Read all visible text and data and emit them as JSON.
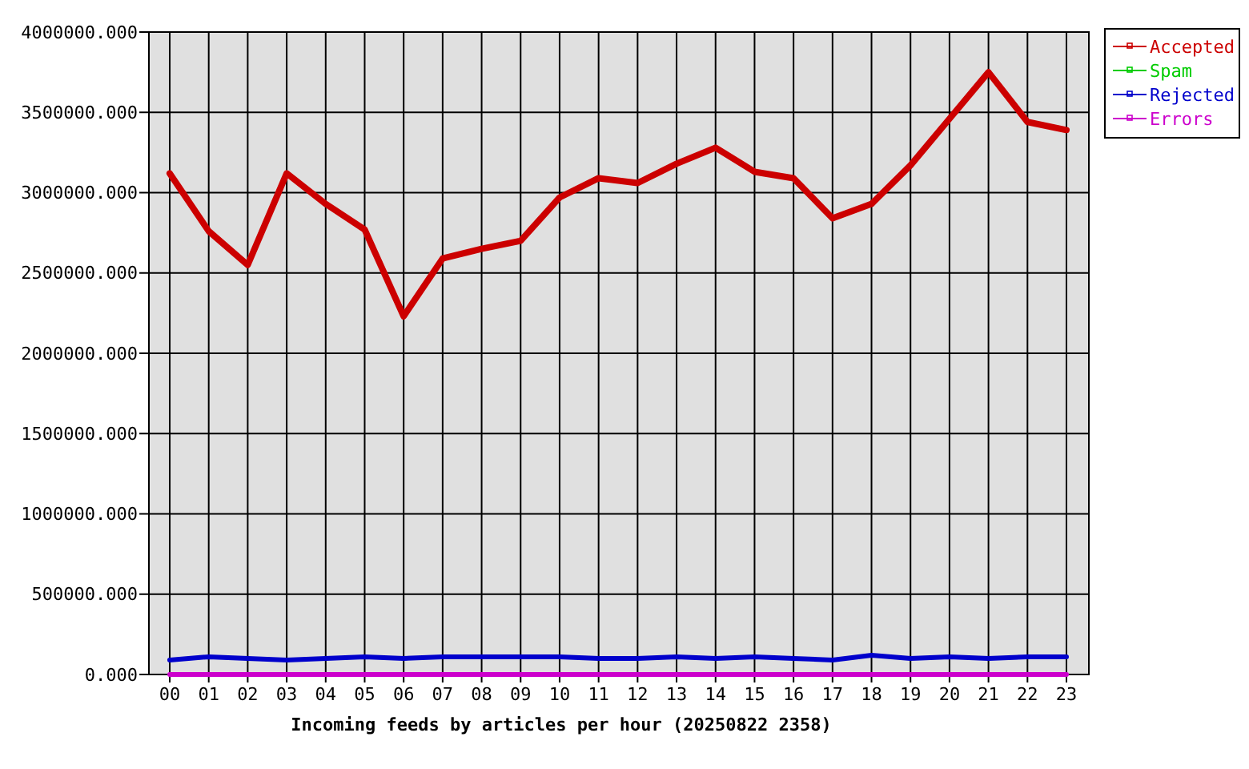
{
  "chart_data": {
    "type": "line",
    "xlabel": "Incoming feeds by articles per hour (20250822 2358)",
    "categories": [
      "00",
      "01",
      "02",
      "03",
      "04",
      "05",
      "06",
      "07",
      "08",
      "09",
      "10",
      "11",
      "12",
      "13",
      "14",
      "15",
      "16",
      "17",
      "18",
      "19",
      "20",
      "21",
      "22",
      "23"
    ],
    "series": [
      {
        "name": "Accepted",
        "color": "#cc0000",
        "values": [
          3120000,
          2760000,
          2550000,
          3120000,
          2930000,
          2770000,
          2230000,
          2590000,
          2650000,
          2700000,
          2970000,
          3090000,
          3060000,
          3180000,
          3280000,
          3130000,
          3090000,
          2840000,
          2930000,
          3170000,
          3460000,
          3750000,
          3440000,
          3390000
        ]
      },
      {
        "name": "Spam",
        "color": "#00cc00",
        "values": [
          null,
          null,
          null,
          null,
          null,
          null,
          null,
          null,
          null,
          null,
          null,
          null,
          null,
          null,
          null,
          null,
          null,
          null,
          null,
          null,
          null,
          null,
          null,
          null
        ]
      },
      {
        "name": "Rejected",
        "color": "#0000cc",
        "values": [
          90000,
          110000,
          100000,
          90000,
          100000,
          110000,
          100000,
          110000,
          110000,
          110000,
          110000,
          100000,
          100000,
          110000,
          100000,
          110000,
          100000,
          90000,
          120000,
          100000,
          110000,
          100000,
          110000,
          110000
        ]
      },
      {
        "name": "Errors",
        "color": "#cc00cc",
        "values": [
          0,
          0,
          0,
          0,
          0,
          0,
          0,
          0,
          0,
          0,
          0,
          0,
          0,
          0,
          0,
          0,
          0,
          0,
          0,
          0,
          0,
          0,
          0,
          0
        ]
      }
    ],
    "ylim": [
      0,
      4000000
    ],
    "yticks": [
      {
        "value": 0,
        "label": "0.000"
      },
      {
        "value": 500000,
        "label": "500000.000"
      },
      {
        "value": 1000000,
        "label": "1000000.000"
      },
      {
        "value": 1500000,
        "label": "1500000.000"
      },
      {
        "value": 2000000,
        "label": "2000000.000"
      },
      {
        "value": 2500000,
        "label": "2500000.000"
      },
      {
        "value": 3000000,
        "label": "3000000.000"
      },
      {
        "value": 3500000,
        "label": "3500000.000"
      },
      {
        "value": 4000000,
        "label": "4000000.000"
      }
    ],
    "grid": true,
    "legend": "top right",
    "marker": "none",
    "line_style": "solid"
  }
}
